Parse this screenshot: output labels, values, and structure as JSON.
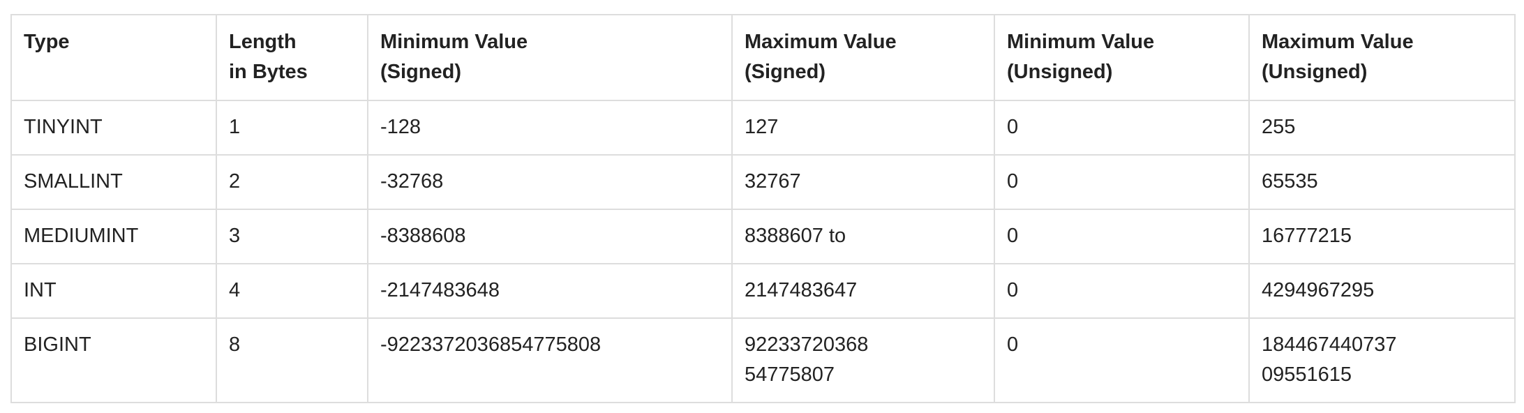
{
  "table": {
    "headers": [
      [
        "Type"
      ],
      [
        "Length",
        "in Bytes"
      ],
      [
        "Minimum Value",
        "(Signed)"
      ],
      [
        "Maximum Value",
        "(Signed)"
      ],
      [
        "Minimum Value",
        "(Unsigned)"
      ],
      [
        "Maximum Value",
        "(Unsigned)"
      ]
    ],
    "rows": [
      [
        [
          "TINYINT"
        ],
        [
          "1"
        ],
        [
          "-128"
        ],
        [
          "127"
        ],
        [
          "0"
        ],
        [
          "255"
        ]
      ],
      [
        [
          "SMALLINT"
        ],
        [
          "2"
        ],
        [
          "-32768"
        ],
        [
          "32767"
        ],
        [
          "0"
        ],
        [
          "65535"
        ]
      ],
      [
        [
          "MEDIUMINT"
        ],
        [
          "3"
        ],
        [
          "-8388608"
        ],
        [
          "8388607 to"
        ],
        [
          "0"
        ],
        [
          "16777215"
        ]
      ],
      [
        [
          "INT"
        ],
        [
          "4"
        ],
        [
          "-2147483648"
        ],
        [
          "2147483647"
        ],
        [
          "0"
        ],
        [
          "4294967295"
        ]
      ],
      [
        [
          "BIGINT"
        ],
        [
          "8"
        ],
        [
          "-9223372036854775808"
        ],
        [
          "92233720368",
          "54775807"
        ],
        [
          "0"
        ],
        [
          "184467440737",
          "09551615"
        ]
      ]
    ]
  }
}
